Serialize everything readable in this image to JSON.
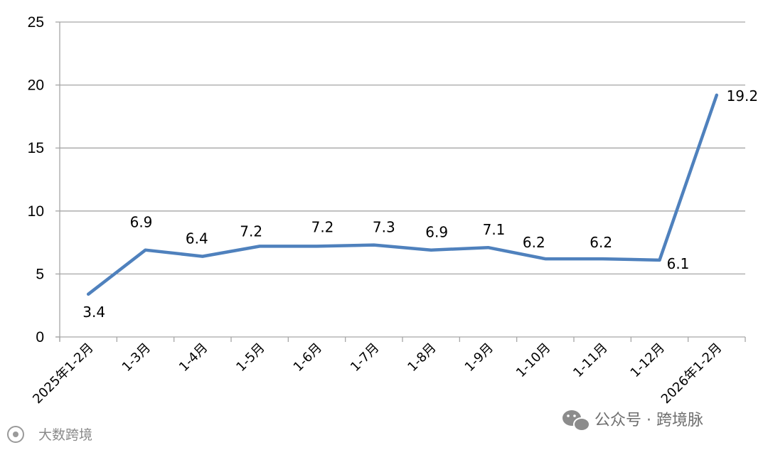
{
  "chart_data": {
    "type": "line",
    "categories": [
      "2025年1-2月",
      "1-3月",
      "1-4月",
      "1-5月",
      "1-6月",
      "1-7月",
      "1-8月",
      "1-9月",
      "1-10月",
      "1-11月",
      "1-12月",
      "2026年1-2月"
    ],
    "series": [
      {
        "values": [
          3.4,
          6.9,
          6.4,
          7.2,
          7.2,
          7.3,
          6.9,
          7.1,
          6.2,
          6.2,
          6.1,
          19.2
        ]
      }
    ],
    "data_labels": [
      "3.4",
      "6.9",
      "6.4",
      "7.2",
      "7.2",
      "7.3",
      "6.9",
      "7.1",
      "6.2",
      "6.2",
      "6.1",
      "19.2"
    ],
    "yticks": [
      "0",
      "5",
      "10",
      "15",
      "20",
      "25"
    ],
    "ylim": [
      0,
      25
    ],
    "title": "",
    "xlabel": "",
    "ylabel": "",
    "grid": true,
    "colors": {
      "line": "#4f81bd",
      "grid": "#a6a6a6",
      "axis": "#a6a6a6"
    }
  },
  "watermark": {
    "left_text": "大数跨境",
    "right_text": "公众号 · 跨境脉",
    "right_icon": "wechat-icon"
  }
}
